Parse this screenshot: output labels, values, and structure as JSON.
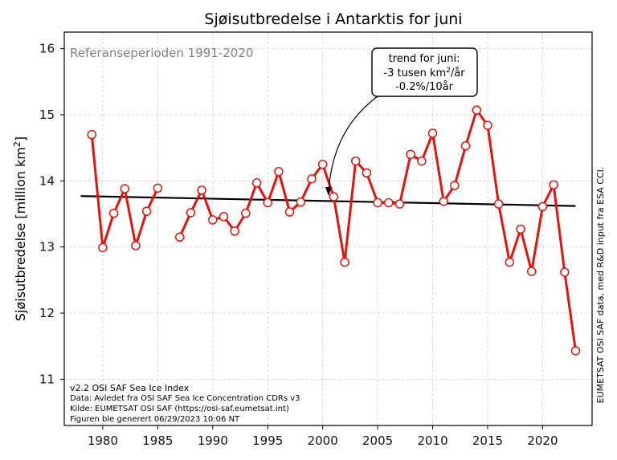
{
  "colors": {
    "series": "#e8120c",
    "trend": "#000000",
    "grid": "#cccccc",
    "reference_text": "#808080"
  },
  "reference_period": "Referanseperioden 1991-2020",
  "annotation": {
    "line1": "trend for juni:",
    "line2_prefix": "-3 tusen km",
    "line2_sup": "2",
    "line2_suffix": "/år",
    "line3": "-0.2%/10år"
  },
  "footer": {
    "version": "v2.2 OSI SAF Sea Ice Index",
    "data": "Data: Avledet fra OSI SAF Sea Ice Concentration CDRs v3",
    "source": "Kilde: EUMETSAT OSI SAF (https://osi-saf.eumetsat.int)",
    "generated": "Figuren ble generert 06/29/2023 10:06 NT"
  },
  "side_note": "EUMETSAT OSI SAF data, med R&D input fra ESA CCI.",
  "chart_data": {
    "type": "line",
    "title": "Sjøisutbredelse i Antarktis for juni",
    "xlabel": "",
    "ylabel_main": "Sjøisutbredelse [million km",
    "ylabel_sup": "2",
    "ylabel_end": "]",
    "xlim": [
      1976.5,
      2024.5
    ],
    "ylim": [
      10.3,
      16.25
    ],
    "xticks": [
      1980,
      1985,
      1990,
      1995,
      2000,
      2005,
      2010,
      2015,
      2020
    ],
    "xtick_labels": [
      "1980",
      "1985",
      "1990",
      "1995",
      "2000",
      "2005",
      "2010",
      "2015",
      "2020"
    ],
    "yticks": [
      11,
      12,
      13,
      14,
      15,
      16
    ],
    "ytick_labels": [
      "11",
      "12",
      "13",
      "14",
      "15",
      "16"
    ],
    "grid": true,
    "series": [
      {
        "name": "Juni sjøisutbredelse",
        "x": [
          1979,
          1980,
          1981,
          1982,
          1983,
          1984,
          1985,
          1986,
          1987,
          1988,
          1989,
          1990,
          1991,
          1992,
          1993,
          1994,
          1995,
          1996,
          1997,
          1998,
          1999,
          2000,
          2001,
          2002,
          2003,
          2004,
          2005,
          2006,
          2007,
          2008,
          2009,
          2010,
          2011,
          2012,
          2013,
          2014,
          2015,
          2016,
          2017,
          2018,
          2019,
          2020,
          2021,
          2022,
          2023
        ],
        "values": [
          14.7,
          12.99,
          13.51,
          13.88,
          13.02,
          13.54,
          13.89,
          null,
          13.15,
          13.52,
          13.86,
          13.41,
          13.46,
          13.24,
          13.51,
          13.97,
          13.67,
          14.14,
          13.53,
          13.68,
          14.03,
          14.25,
          13.76,
          12.77,
          14.3,
          14.12,
          13.67,
          13.67,
          13.65,
          14.4,
          14.3,
          14.72,
          13.69,
          13.93,
          14.53,
          15.07,
          14.84,
          13.65,
          12.77,
          13.27,
          12.63,
          13.61,
          13.94,
          12.62,
          11.43
        ]
      }
    ],
    "trend": {
      "name": "Trend",
      "x": [
        1978,
        2023
      ],
      "values": [
        13.77,
        13.62
      ]
    }
  }
}
